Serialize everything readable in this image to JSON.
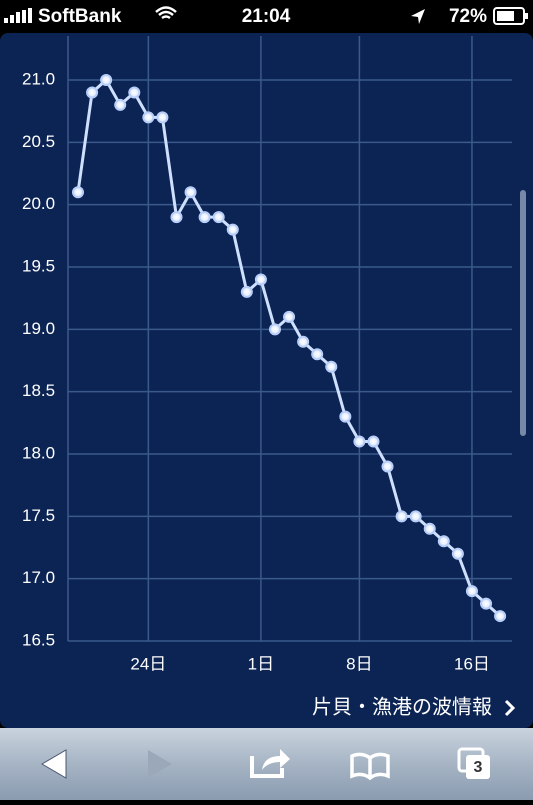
{
  "status_bar": {
    "carrier": "SoftBank",
    "time": "21:04",
    "battery": "72%"
  },
  "chart_data": {
    "type": "line",
    "categories": [
      null,
      null,
      null,
      null,
      null,
      "24日",
      null,
      null,
      null,
      null,
      null,
      null,
      null,
      "1日",
      null,
      null,
      null,
      null,
      null,
      null,
      "8日",
      null,
      null,
      null,
      null,
      null,
      null,
      null,
      "16日",
      null,
      null
    ],
    "series": [
      {
        "color": "#cfe0ff",
        "values": [
          20.1,
          20.9,
          21.0,
          20.8,
          20.9,
          20.7,
          20.7,
          19.9,
          20.1,
          19.9,
          19.9,
          19.8,
          19.3,
          19.4,
          19.0,
          19.1,
          18.9,
          18.8,
          18.7,
          18.3,
          18.1,
          18.1,
          17.9,
          17.5,
          17.5,
          17.4,
          17.3,
          17.2,
          16.9,
          16.8,
          16.7
        ]
      }
    ],
    "ylim": [
      16.5,
      21.0
    ],
    "yticks": [
      16.5,
      {
        "value": 17,
        "label": "17.0"
      },
      17.5,
      {
        "value": 18,
        "label": "18.0"
      },
      18.5,
      {
        "value": 19,
        "label": "19.0"
      },
      19.5,
      {
        "value": 20,
        "label": "20.0"
      },
      20.5,
      {
        "value": 21,
        "label": "21.0"
      }
    ],
    "grid": true
  },
  "link": "片貝・漁港の波情報",
  "toolbar": {
    "tab_count": "3"
  }
}
